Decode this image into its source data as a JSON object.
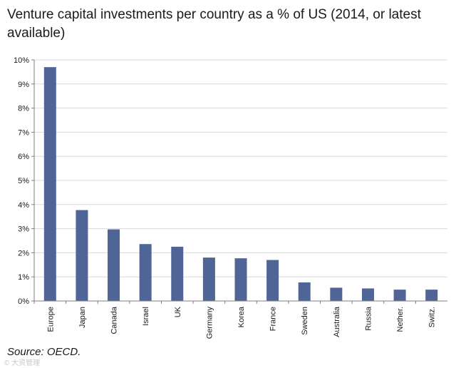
{
  "chart_data": {
    "type": "bar",
    "title": "Venture capital investments per country as a % of US (2014, or latest available)",
    "categories": [
      "Europe",
      "Japan",
      "Canada",
      "Israel",
      "UK",
      "Germany",
      "Korea",
      "France",
      "Sweden",
      "Australia",
      "Russia",
      "Nether.",
      "Switz."
    ],
    "values": [
      9.7,
      3.77,
      2.97,
      2.36,
      2.25,
      1.8,
      1.77,
      1.7,
      0.77,
      0.55,
      0.52,
      0.47,
      0.47
    ],
    "ylim": [
      0,
      10
    ],
    "y_ticks": [
      "0%",
      "1%",
      "2%",
      "3%",
      "4%",
      "5%",
      "6%",
      "7%",
      "8%",
      "9%",
      "10%"
    ],
    "xlabel": "",
    "ylabel": "",
    "grid": true,
    "bar_color": "#4f6595"
  },
  "source": "Source:  OECD.",
  "watermark": "© 大资管理"
}
